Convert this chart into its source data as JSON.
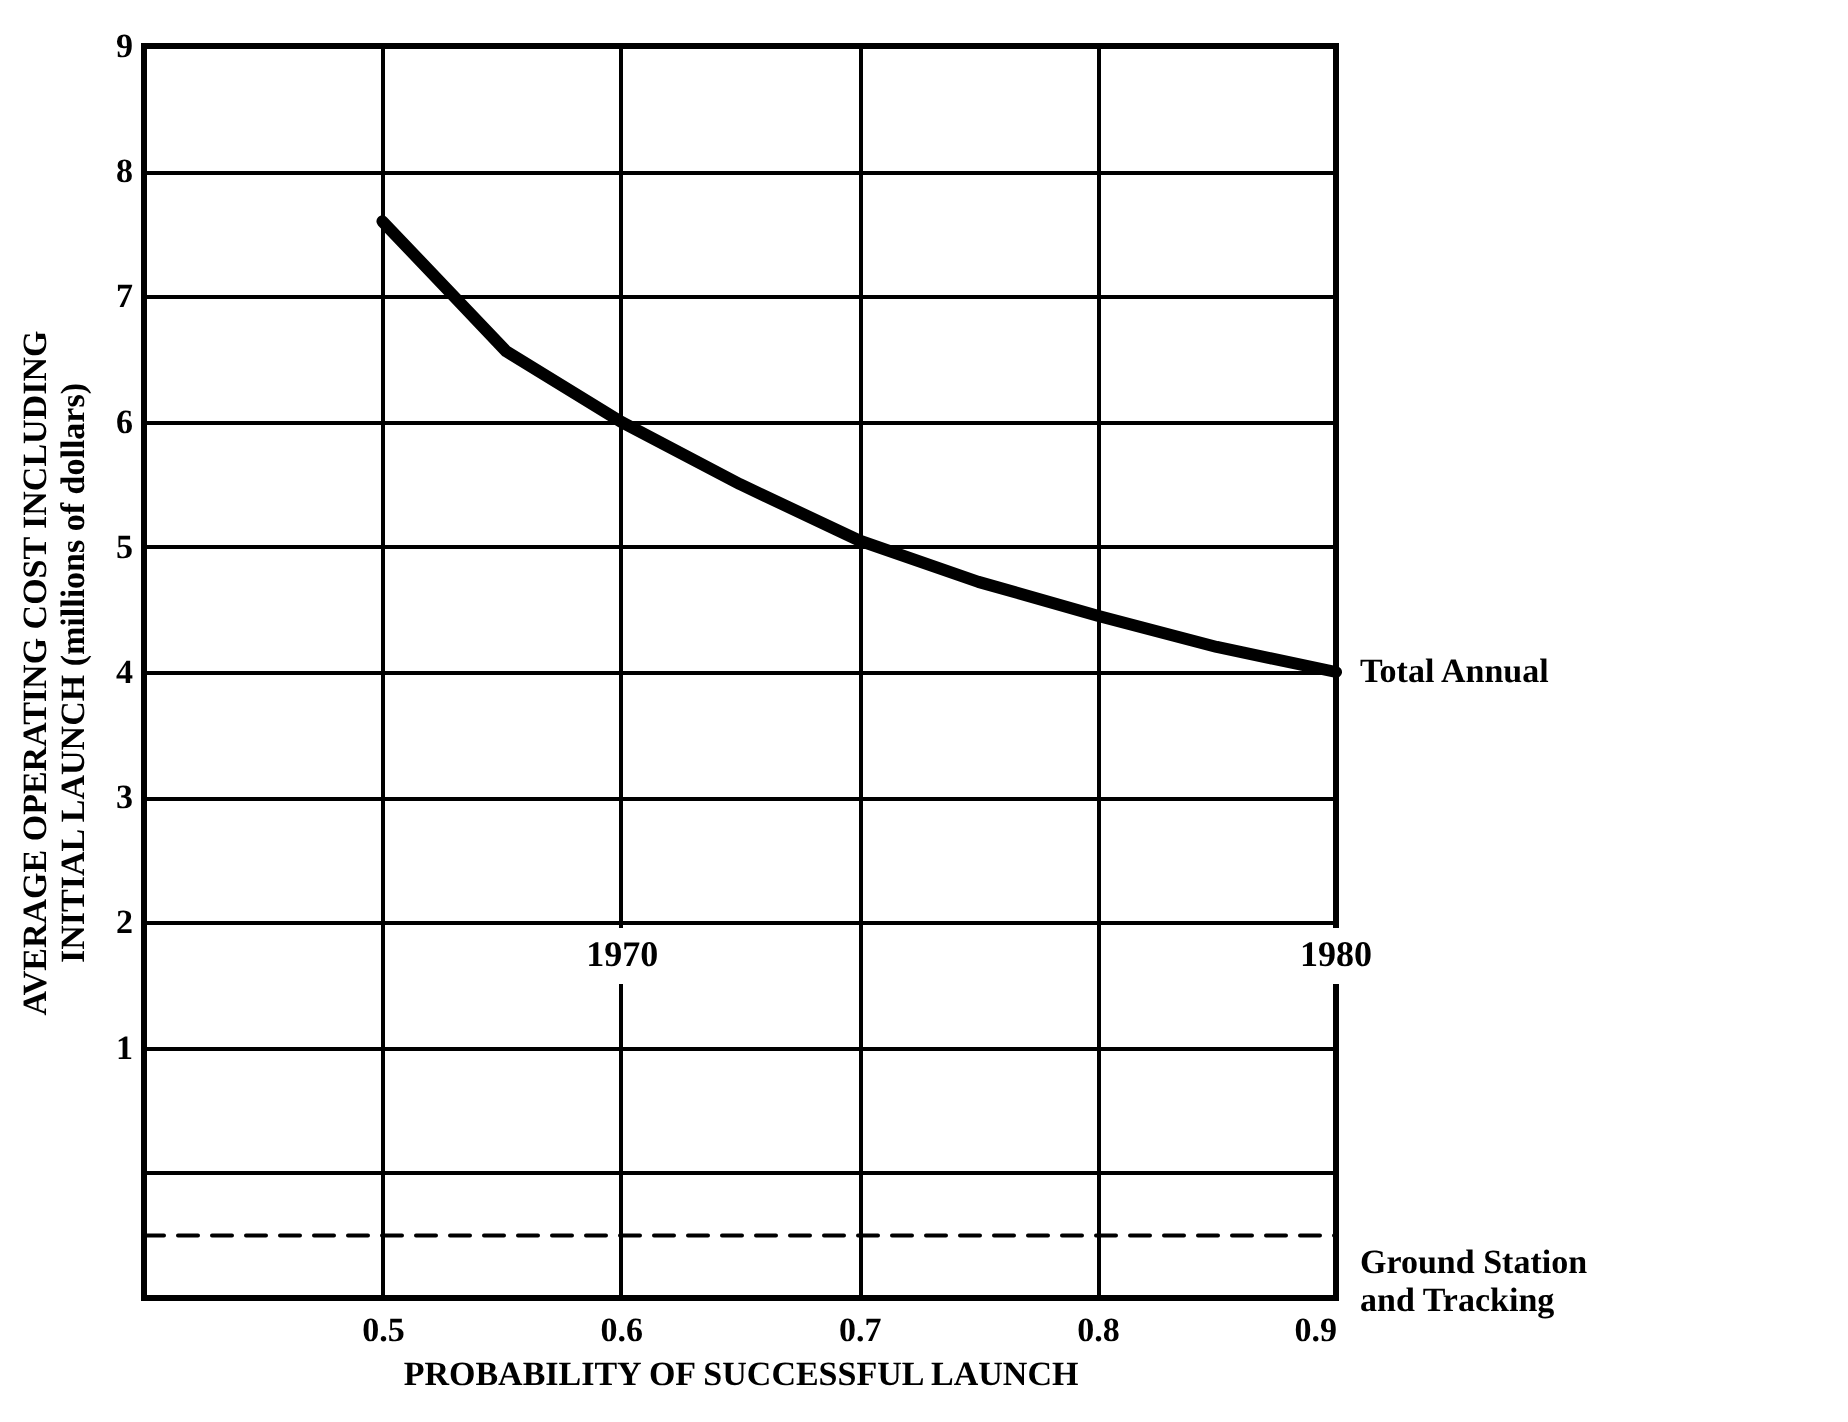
{
  "chart_data": {
    "type": "line",
    "xlabel": "PROBABILITY OF SUCCESSFUL LAUNCH",
    "ylabel": "AVERAGE OPERATING COST INCLUDING\nINITIAL LAUNCH (millions of dollars)",
    "series": [
      {
        "name": "Total Annual",
        "color": "#000000",
        "x": [
          0.5,
          0.53,
          0.552,
          0.6,
          0.65,
          0.7,
          0.75,
          0.8,
          0.85,
          0.9
        ],
        "values": [
          7.6,
          7.0,
          6.56,
          6.0,
          5.5,
          5.05,
          4.72,
          4.45,
          4.2,
          4.0
        ]
      },
      {
        "name": "Ground Station\nand Tracking",
        "color": "#000000",
        "line_style": "dashed",
        "x": [
          0.4,
          0.9
        ],
        "values": [
          -0.5,
          -0.5
        ]
      }
    ],
    "xlim": [
      0.4,
      0.9
    ],
    "xticks": [
      0.5,
      0.6,
      0.7,
      0.8,
      0.9
    ],
    "ylim": [
      -1,
      9
    ],
    "yticks": [
      {
        "value": -1,
        "label": null
      },
      {
        "value": 0,
        "label": null
      },
      1,
      2,
      3,
      4,
      5,
      6,
      7,
      8,
      9
    ],
    "grid": true,
    "marker": "none",
    "line_style": "solid",
    "x2lim": [
      1963.3,
      1980
    ],
    "x2ticks": [
      1970,
      1980
    ]
  }
}
